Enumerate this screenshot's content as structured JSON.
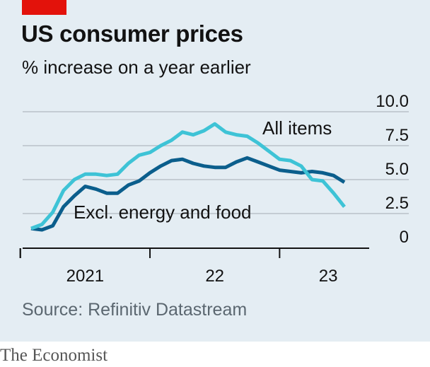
{
  "header": {
    "title": "US consumer prices",
    "subtitle": "% increase on a year earlier"
  },
  "footer": {
    "source": "Source: Refinitiv Datastream",
    "brand": "The Economist"
  },
  "colors": {
    "background": "#e4edf3",
    "accent": "#e3120b",
    "all_items": "#3ec3d6",
    "core": "#0b5e8c",
    "gridline": "#c4ccd3",
    "axis": "#121212"
  },
  "chart_data": {
    "type": "line",
    "title": "US consumer prices",
    "ylabel": "% increase on a year earlier",
    "ylim": [
      0,
      10
    ],
    "yticks": [
      0,
      2.5,
      5,
      7.5,
      10
    ],
    "ytick_labels": [
      "0",
      "2.5",
      "5.0",
      "7.5",
      "10.0"
    ],
    "y_axis_position": "right",
    "grid": true,
    "xlim": [
      "2020-12",
      "2023-09"
    ],
    "xticks": [
      "2021-01",
      "2022-01",
      "2023-01"
    ],
    "xtick_labels": [
      "2021",
      "22",
      "23"
    ],
    "x": [
      "2021-01",
      "2021-02",
      "2021-03",
      "2021-04",
      "2021-05",
      "2021-06",
      "2021-07",
      "2021-08",
      "2021-09",
      "2021-10",
      "2021-11",
      "2021-12",
      "2022-01",
      "2022-02",
      "2022-03",
      "2022-04",
      "2022-05",
      "2022-06",
      "2022-07",
      "2022-08",
      "2022-09",
      "2022-10",
      "2022-11",
      "2022-12",
      "2023-01",
      "2023-02",
      "2023-03",
      "2023-04",
      "2023-05",
      "2023-06"
    ],
    "series": [
      {
        "name": "All items",
        "values": [
          1.4,
          1.7,
          2.6,
          4.2,
          5.0,
          5.4,
          5.4,
          5.3,
          5.4,
          6.2,
          6.8,
          7.0,
          7.5,
          7.9,
          8.5,
          8.3,
          8.6,
          9.1,
          8.5,
          8.3,
          8.2,
          7.7,
          7.1,
          6.5,
          6.4,
          6.0,
          5.0,
          4.9,
          4.0,
          3.0
        ],
        "annotation_label": "All items"
      },
      {
        "name": "Excl. energy and food",
        "values": [
          1.4,
          1.3,
          1.6,
          3.0,
          3.8,
          4.5,
          4.3,
          4.0,
          4.0,
          4.6,
          4.9,
          5.5,
          6.0,
          6.4,
          6.5,
          6.2,
          6.0,
          5.9,
          5.9,
          6.3,
          6.6,
          6.3,
          6.0,
          5.7,
          5.6,
          5.5,
          5.6,
          5.5,
          5.3,
          4.8
        ],
        "annotation_label": "Excl. energy and food"
      }
    ]
  }
}
